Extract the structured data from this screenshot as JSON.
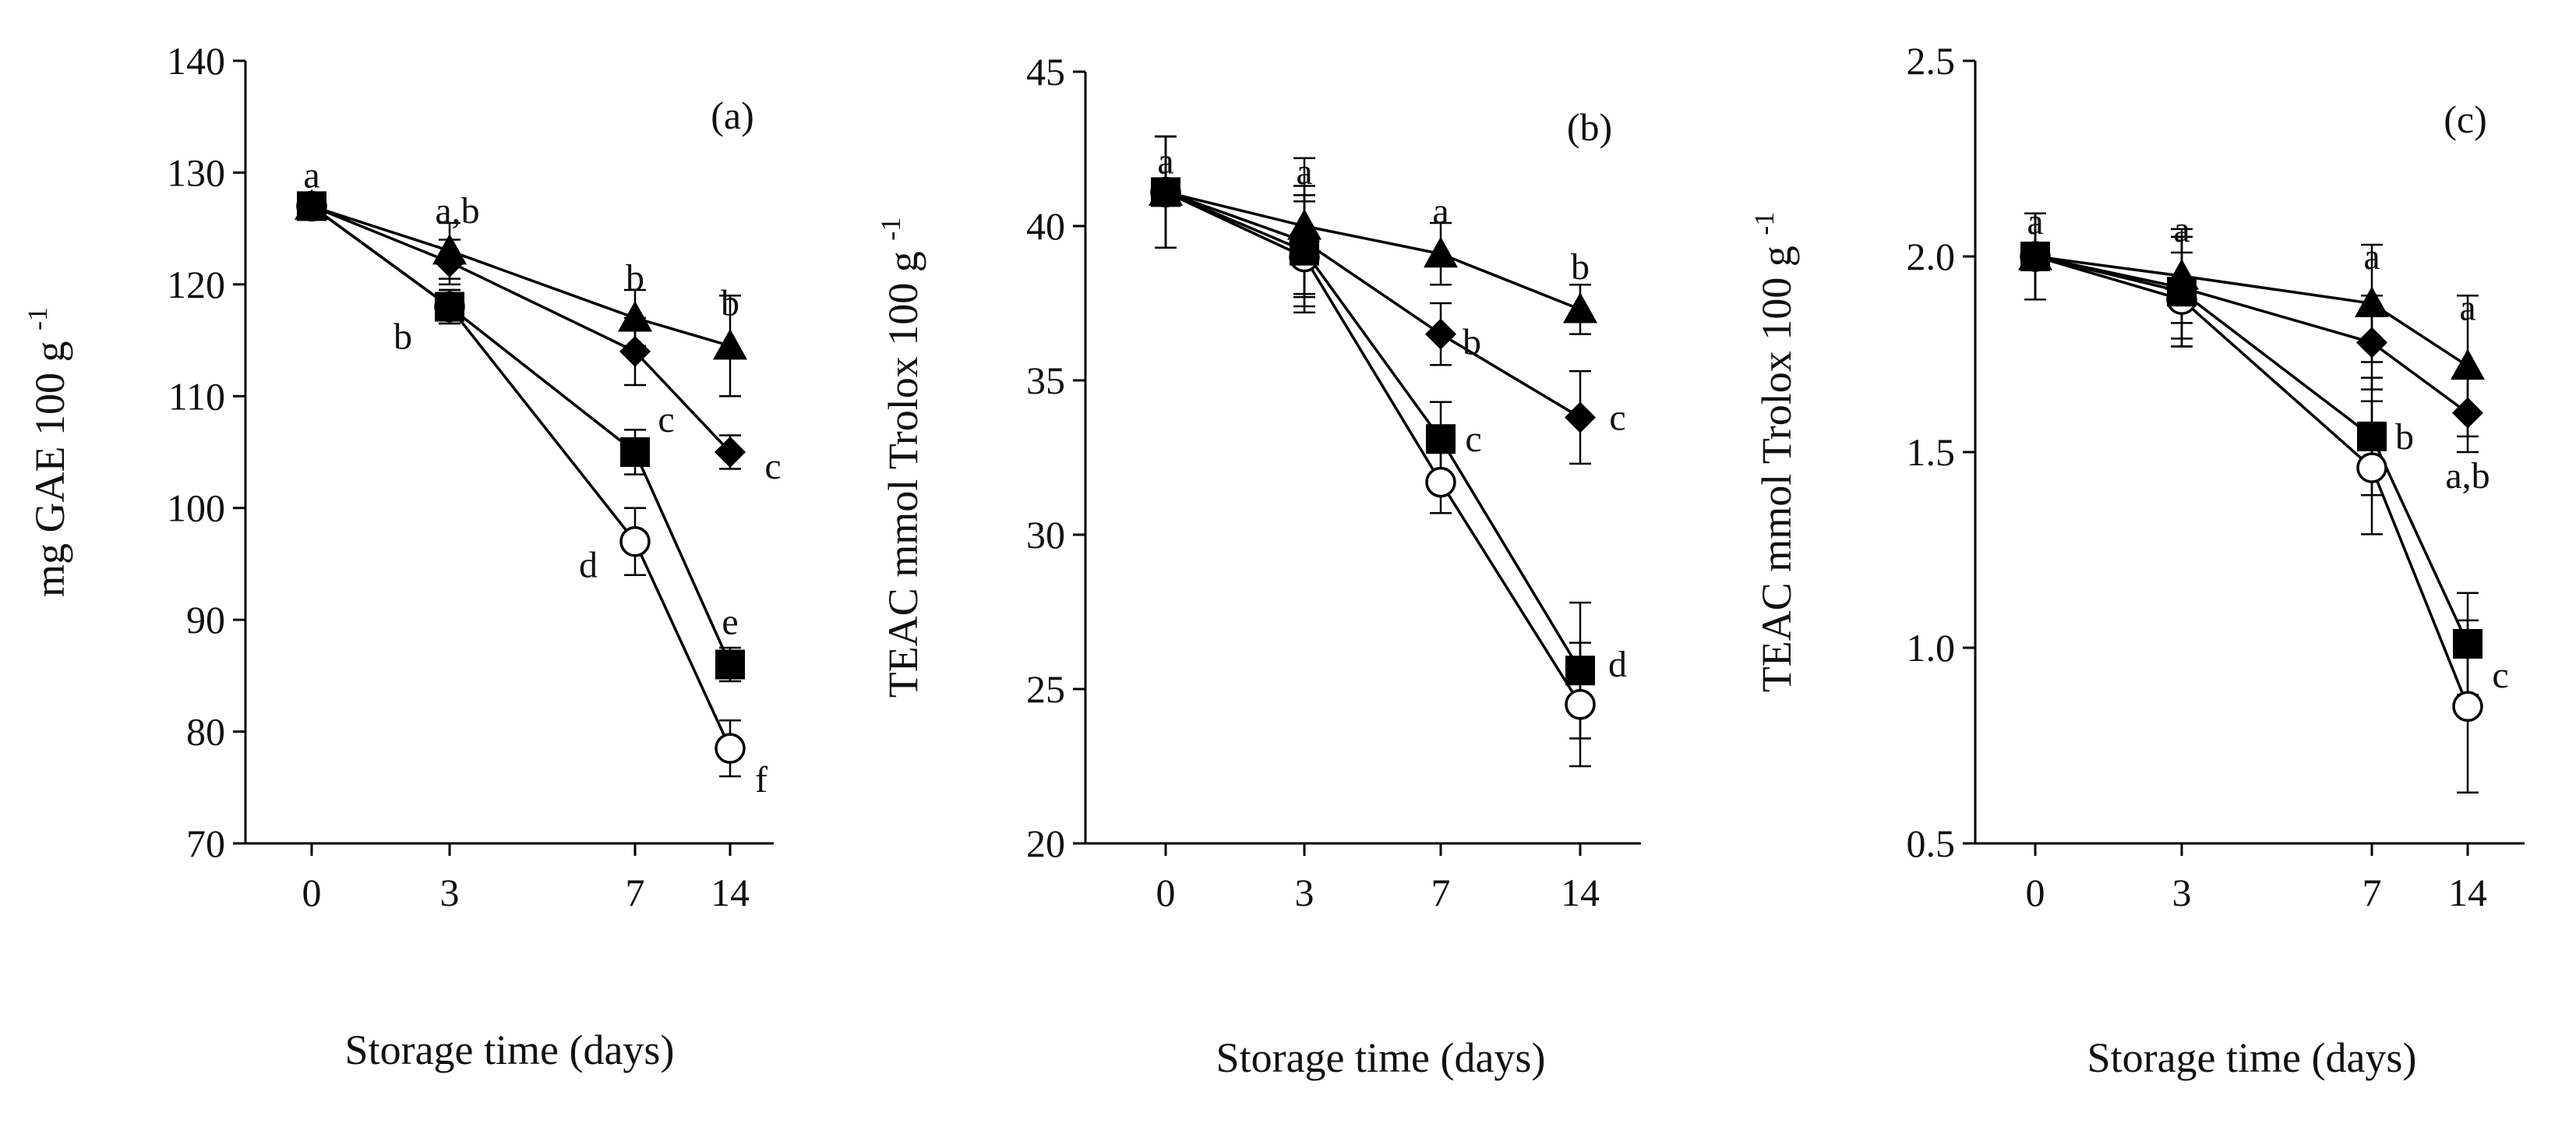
{
  "chart_data": [
    {
      "type": "line",
      "panel_label": "(a)",
      "xlabel": "Storage time (days)",
      "ylabel": "mg GAE 100 g",
      "ylabel_superscript": "-1",
      "x": [
        0,
        3,
        7,
        14
      ],
      "xticks": [
        "0",
        "3",
        "7",
        "14"
      ],
      "ylim": [
        70,
        140
      ],
      "yticks": [
        "70",
        "80",
        "90",
        "100",
        "110",
        "120",
        "130",
        "140"
      ],
      "series": [
        {
          "marker": "triangle",
          "values": [
            127,
            123,
            117,
            114.5
          ],
          "errors": [
            1,
            2.5,
            2.5,
            4.5
          ]
        },
        {
          "marker": "diamond",
          "values": [
            127,
            122,
            114,
            105
          ],
          "errors": [
            1,
            2,
            3,
            1.5
          ]
        },
        {
          "marker": "square",
          "values": [
            127,
            118,
            105,
            86
          ],
          "errors": [
            1,
            1.5,
            2,
            1.5
          ]
        },
        {
          "marker": "circle-open",
          "values": [
            127,
            118,
            97,
            78.5
          ],
          "errors": [
            1,
            1.5,
            3,
            2.5
          ]
        }
      ],
      "annotations": [
        {
          "text": "a",
          "x": 0,
          "y": 127
        },
        {
          "text": "a,b",
          "x": 3,
          "y": 123
        },
        {
          "text": "b",
          "x": 3,
          "y": 118
        },
        {
          "text": "b",
          "x": 7,
          "y": 117
        },
        {
          "text": "c",
          "x": 7,
          "y": 105
        },
        {
          "text": "d",
          "x": 7,
          "y": 97
        },
        {
          "text": "b",
          "x": 14,
          "y": 114.5
        },
        {
          "text": "c",
          "x": 14,
          "y": 105
        },
        {
          "text": "e",
          "x": 14,
          "y": 86
        },
        {
          "text": "f",
          "x": 14,
          "y": 78.5
        }
      ]
    },
    {
      "type": "line",
      "panel_label": "(b)",
      "xlabel": "Storage time (days)",
      "ylabel": "TEAC mmol Trolox 100 g",
      "ylabel_superscript": "-1",
      "x": [
        0,
        3,
        7,
        14
      ],
      "xticks": [
        "0",
        "3",
        "7",
        "14"
      ],
      "ylim": [
        20,
        45
      ],
      "yticks": [
        "20",
        "25",
        "30",
        "35",
        "40",
        "45"
      ],
      "series": [
        {
          "marker": "triangle",
          "values": [
            41.1,
            40,
            39.1,
            37.3
          ],
          "errors": [
            1.8,
            2.2,
            1,
            0.8
          ]
        },
        {
          "marker": "diamond",
          "values": [
            41.1,
            39.5,
            36.5,
            33.8
          ],
          "errors": [
            1.8,
            1.8,
            1,
            1.5
          ]
        },
        {
          "marker": "square",
          "values": [
            41.1,
            39.2,
            33.1,
            25.6
          ],
          "errors": [
            1.8,
            1.8,
            1.2,
            2.2
          ]
        },
        {
          "marker": "circle-open",
          "values": [
            41.1,
            39,
            31.7,
            24.5
          ],
          "errors": [
            1.8,
            1.8,
            1,
            2
          ]
        }
      ],
      "annotations": [
        {
          "text": "a",
          "x": 0,
          "y": 41.1
        },
        {
          "text": "a",
          "x": 3,
          "y": 40
        },
        {
          "text": "a",
          "x": 7,
          "y": 39.1
        },
        {
          "text": "b",
          "x": 7,
          "y": 36.5
        },
        {
          "text": "c",
          "x": 7,
          "y": 33.1
        },
        {
          "text": "b",
          "x": 14,
          "y": 37.3
        },
        {
          "text": "c",
          "x": 14,
          "y": 33.8
        },
        {
          "text": "d",
          "x": 14,
          "y": 25.6
        }
      ]
    },
    {
      "type": "line",
      "panel_label": "(c)",
      "xlabel": "Storage time (days)",
      "ylabel": "TEAC mmol Trolox 100 g",
      "ylabel_superscript": "-1",
      "x": [
        0,
        3,
        7,
        14
      ],
      "xticks": [
        "0",
        "3",
        "7",
        "14"
      ],
      "ylim": [
        0.5,
        2.5
      ],
      "yticks": [
        "0.5",
        "1.0",
        "1.5",
        "2.0",
        "2.5"
      ],
      "series": [
        {
          "marker": "triangle",
          "values": [
            2.0,
            1.95,
            1.88,
            1.72
          ],
          "errors": [
            0.11,
            0.12,
            0.15,
            0.18
          ]
        },
        {
          "marker": "diamond",
          "values": [
            2.0,
            1.92,
            1.78,
            1.6
          ],
          "errors": [
            0.11,
            0.13,
            0.12,
            0.1
          ]
        },
        {
          "marker": "square",
          "values": [
            2.0,
            1.91,
            1.54,
            1.01
          ],
          "errors": [
            0.11,
            0.14,
            0.15,
            0.13
          ]
        },
        {
          "marker": "circle-open",
          "values": [
            2.0,
            1.89,
            1.46,
            0.85
          ],
          "errors": [
            0.11,
            0.12,
            0.17,
            0.22
          ]
        }
      ],
      "annotations": [
        {
          "text": "a",
          "x": 0,
          "y": 2.0
        },
        {
          "text": "a",
          "x": 3,
          "y": 1.95
        },
        {
          "text": "a",
          "x": 7,
          "y": 1.88
        },
        {
          "text": "b",
          "x": 7,
          "y": 1.54
        },
        {
          "text": "a",
          "x": 14,
          "y": 1.72
        },
        {
          "text": "a,b",
          "x": 14,
          "y": 1.6
        },
        {
          "text": "c",
          "x": 14,
          "y": 1.01
        }
      ]
    }
  ]
}
